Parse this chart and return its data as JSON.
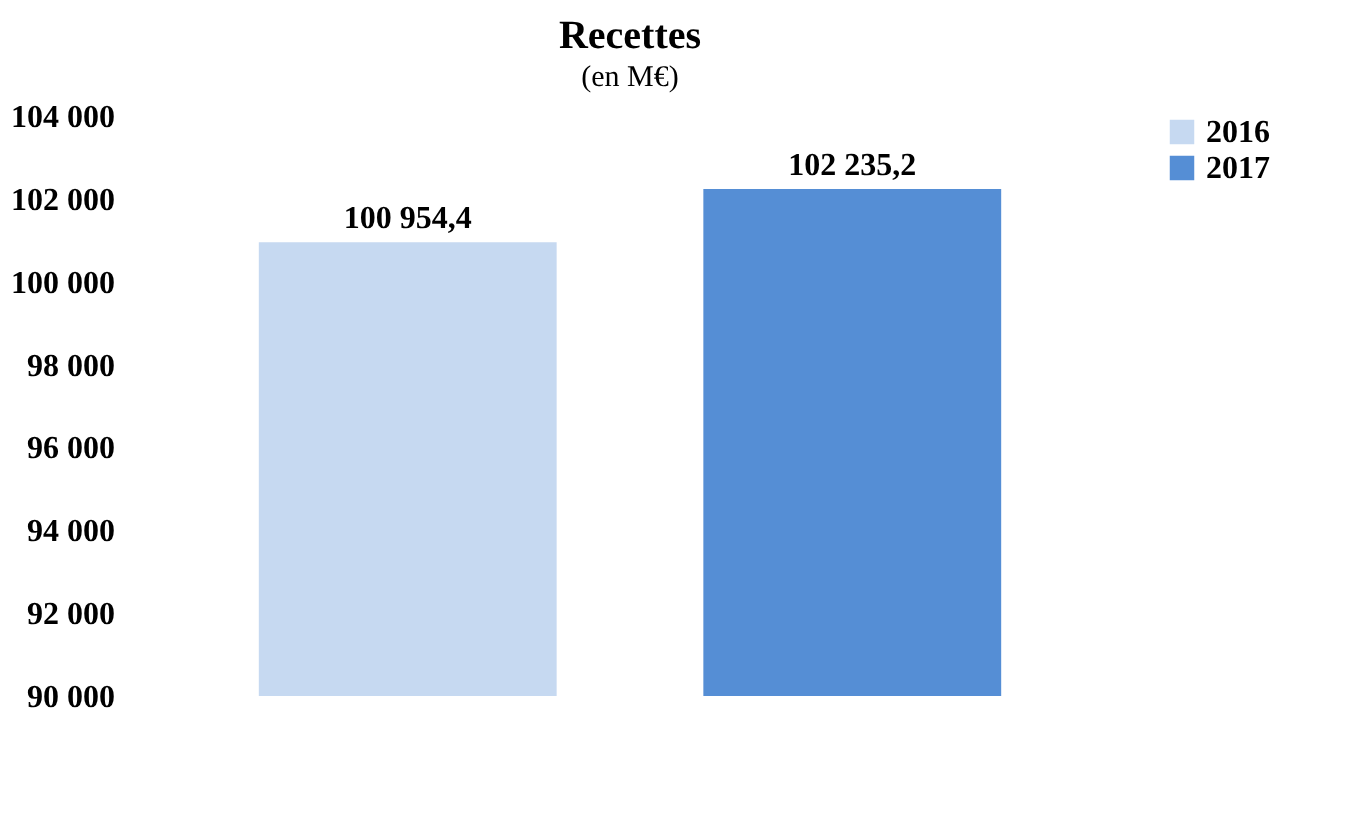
{
  "chart_data": {
    "type": "bar",
    "title": "Recettes",
    "subtitle": "(en M€)",
    "categories": [
      null
    ],
    "series": [
      {
        "name": "2016",
        "color": "#c6d9f1",
        "values": [
          100954.4
        ],
        "value_labels": [
          "100 954,4"
        ]
      },
      {
        "name": "2017",
        "color": "#558ed5",
        "values": [
          102235.2
        ],
        "value_labels": [
          "102 235,2"
        ]
      }
    ],
    "ylim": [
      90000,
      104000
    ],
    "yticks": [
      {
        "value": 90000,
        "label": "90 000"
      },
      {
        "value": 92000,
        "label": "92 000"
      },
      {
        "value": 94000,
        "label": "94 000"
      },
      {
        "value": 96000,
        "label": "96 000"
      },
      {
        "value": 98000,
        "label": "98 000"
      },
      {
        "value": 100000,
        "label": "100 000"
      },
      {
        "value": 102000,
        "label": "102 000"
      },
      {
        "value": 104000,
        "label": "104 000"
      }
    ],
    "grid": false,
    "legend": "right"
  }
}
